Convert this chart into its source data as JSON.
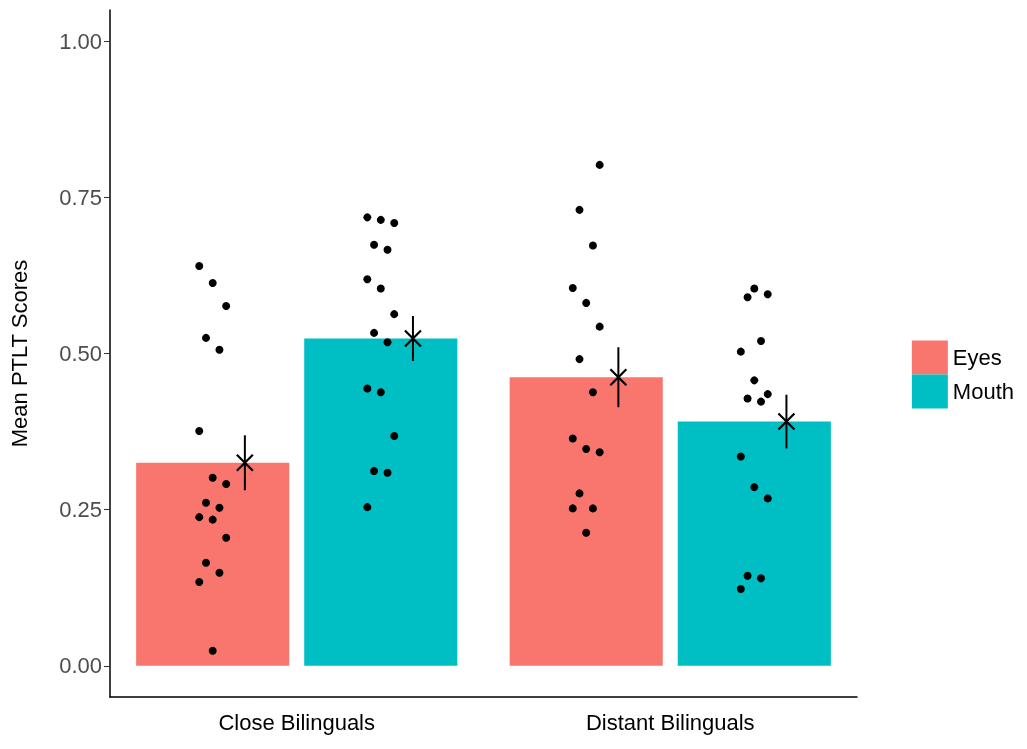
{
  "chart_data": {
    "type": "bar",
    "ylabel": "Mean PTLT Scores",
    "categories": [
      "Close Bilinguals",
      "Distant Bilinguals"
    ],
    "ylim": [
      -0.05,
      1.05
    ],
    "yticks": [
      {
        "value": 0,
        "label": "0.00"
      },
      {
        "value": 0.25,
        "label": "0.25"
      },
      {
        "value": 0.5,
        "label": "0.50"
      },
      {
        "value": 0.75,
        "label": "0.75"
      },
      {
        "value": 1,
        "label": "1.00"
      }
    ],
    "grid": false,
    "legend": "right",
    "series": [
      {
        "name": "Eyes",
        "color": "#f8766d",
        "values": [
          0.325,
          0.462
        ]
      },
      {
        "name": "Mouth",
        "color": "#00bfc4",
        "values": [
          0.524,
          0.391
        ]
      },
      {
        "type": "scatter",
        "color": "#000000",
        "marker": "cross",
        "x": [
          "Close Bilinguals",
          "Distant Bilinguals"
        ],
        "values": [
          0.325,
          0.462
        ],
        "errors": [
          0.044,
          0.048
        ]
      },
      {
        "type": "scatter",
        "color": "#000000",
        "marker": "cross",
        "x": [
          "Close Bilinguals",
          "Distant Bilinguals"
        ],
        "values": [
          0.524,
          0.391
        ],
        "errors": [
          0.036,
          0.043
        ]
      },
      {
        "type": "scatter",
        "color": "#000000",
        "marker": "circle",
        "x": [
          "Close Bilinguals",
          "Close Bilinguals",
          "Close Bilinguals",
          "Close Bilinguals",
          "Close Bilinguals",
          "Close Bilinguals",
          "Close Bilinguals",
          "Close Bilinguals",
          "Close Bilinguals",
          "Close Bilinguals",
          "Close Bilinguals",
          "Close Bilinguals",
          "Close Bilinguals",
          "Close Bilinguals",
          "Close Bilinguals",
          "Close Bilinguals",
          "Close Bilinguals",
          "Distant Bilinguals",
          "Distant Bilinguals",
          "Distant Bilinguals",
          "Distant Bilinguals",
          "Distant Bilinguals",
          "Distant Bilinguals",
          "Distant Bilinguals",
          "Distant Bilinguals",
          "Distant Bilinguals",
          "Distant Bilinguals",
          "Distant Bilinguals",
          "Distant Bilinguals",
          "Distant Bilinguals",
          "Distant Bilinguals",
          "Distant Bilinguals"
        ],
        "values": [
          0.64,
          0.613,
          0.576,
          0.525,
          0.506,
          0.376,
          0.301,
          0.291,
          0.261,
          0.253,
          0.238,
          0.234,
          0.205,
          0.165,
          0.149,
          0.134,
          0.024,
          0.802,
          0.73,
          0.673,
          0.605,
          0.581,
          0.543,
          0.491,
          0.438,
          0.364,
          0.347,
          0.342,
          0.276,
          0.252,
          0.252,
          0.213
        ]
      },
      {
        "type": "scatter",
        "color": "#000000",
        "marker": "circle",
        "x": [
          "Close Bilinguals",
          "Close Bilinguals",
          "Close Bilinguals",
          "Close Bilinguals",
          "Close Bilinguals",
          "Close Bilinguals",
          "Close Bilinguals",
          "Close Bilinguals",
          "Close Bilinguals",
          "Close Bilinguals",
          "Close Bilinguals",
          "Close Bilinguals",
          "Close Bilinguals",
          "Close Bilinguals",
          "Close Bilinguals",
          "Close Bilinguals",
          "Distant Bilinguals",
          "Distant Bilinguals",
          "Distant Bilinguals",
          "Distant Bilinguals",
          "Distant Bilinguals",
          "Distant Bilinguals",
          "Distant Bilinguals",
          "Distant Bilinguals",
          "Distant Bilinguals",
          "Distant Bilinguals",
          "Distant Bilinguals",
          "Distant Bilinguals",
          "Distant Bilinguals",
          "Distant Bilinguals",
          "Distant Bilinguals"
        ],
        "values": [
          0.718,
          0.714,
          0.709,
          0.674,
          0.666,
          0.619,
          0.604,
          0.563,
          0.533,
          0.518,
          0.444,
          0.438,
          0.368,
          0.312,
          0.309,
          0.254,
          0.604,
          0.595,
          0.59,
          0.52,
          0.503,
          0.457,
          0.435,
          0.428,
          0.423,
          0.335,
          0.286,
          0.268,
          0.144,
          0.14,
          0.123
        ]
      }
    ]
  }
}
